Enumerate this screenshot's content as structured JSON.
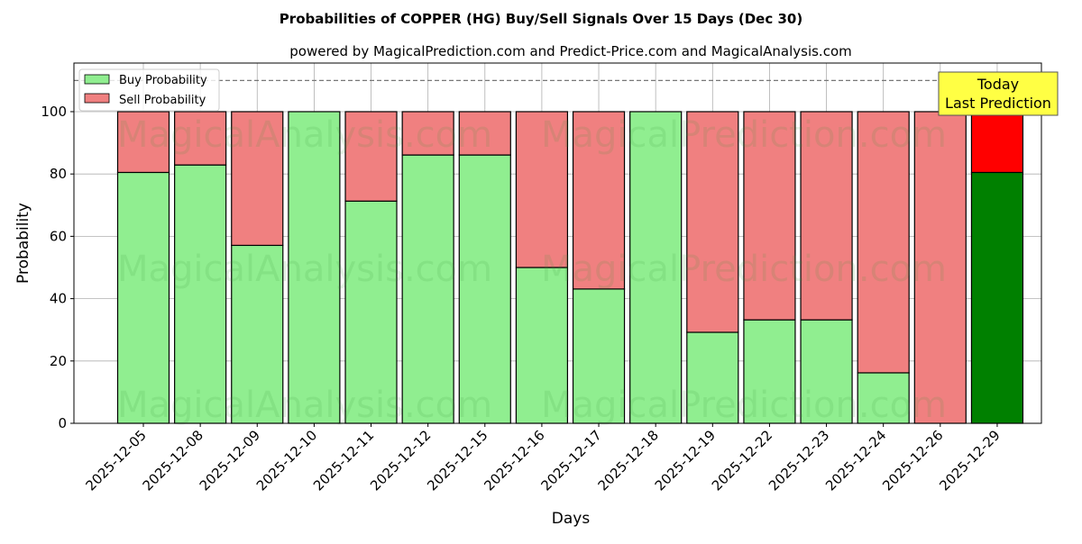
{
  "chart_data": {
    "type": "bar",
    "stacked": true,
    "title": "Probabilities of COPPER (HG) Buy/Sell Signals Over 15 Days (Dec 30)",
    "subtitle": "powered by MagicalPrediction.com and Predict-Price.com and MagicalAnalysis.com",
    "xlabel": "Days",
    "ylabel": "Probability",
    "ylim": [
      0,
      115.6
    ],
    "yticks": [
      0,
      20,
      40,
      60,
      80,
      100
    ],
    "grid": true,
    "legend_position": "top-left",
    "reference_line": 110,
    "categories": [
      "2025-12-05",
      "2025-12-08",
      "2025-12-09",
      "2025-12-10",
      "2025-12-11",
      "2025-12-12",
      "2025-12-15",
      "2025-12-16",
      "2025-12-17",
      "2025-12-18",
      "2025-12-19",
      "2025-12-22",
      "2025-12-23",
      "2025-12-24",
      "2025-12-26",
      "2025-12-29"
    ],
    "series": [
      {
        "name": "Buy Probability",
        "color": "#90ee90",
        "today_color": "#008000",
        "values": [
          80.5,
          82.9,
          57.1,
          100,
          71.3,
          86.1,
          86.1,
          50.0,
          43.1,
          100,
          29.2,
          33.2,
          33.2,
          16.2,
          0,
          80.5
        ]
      },
      {
        "name": "Sell Probability",
        "color": "#f08080",
        "today_color": "#ff0000",
        "values": [
          19.5,
          17.1,
          42.9,
          0,
          28.7,
          13.9,
          13.9,
          50.0,
          56.9,
          0,
          70.8,
          66.8,
          66.8,
          83.8,
          100,
          19.5
        ]
      }
    ],
    "annotation": {
      "line1": "Today",
      "line2": "Last Prediction"
    },
    "watermarks": [
      "MagicalAnalysis.com",
      "MagicalPrediction.com"
    ]
  }
}
